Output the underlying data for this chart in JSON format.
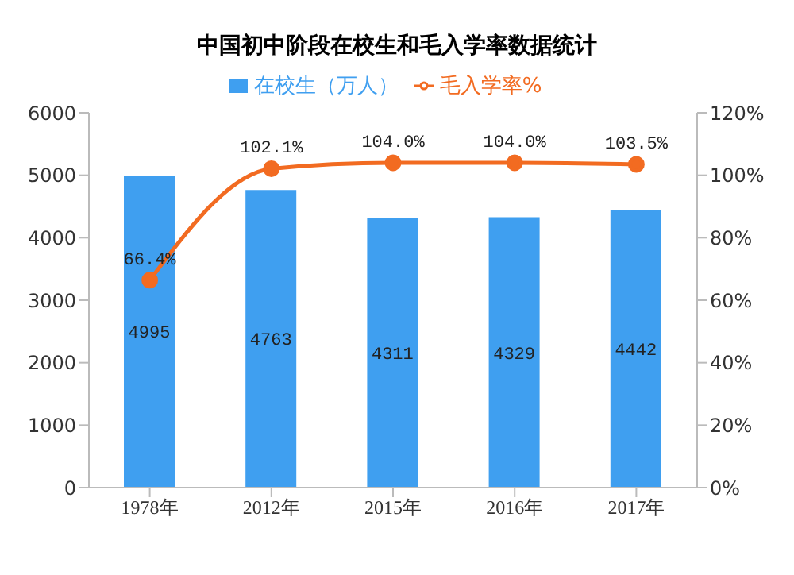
{
  "chart_data": {
    "type": "bar",
    "title": "中国初中阶段在校生和毛入学率数据统计",
    "categories": [
      "1978年",
      "2012年",
      "2015年",
      "2016年",
      "2017年"
    ],
    "series": [
      {
        "name": "在校生（万人）",
        "color": "#3f9ff0",
        "values": [
          4995,
          4763,
          4311,
          4329,
          4442
        ]
      },
      {
        "name": "毛入学率%",
        "type": "line",
        "axis": "y2",
        "color": "#f26b21",
        "values": [
          66.4,
          102.1,
          104.0,
          104.0,
          103.5
        ],
        "value_labels": [
          "66.4%",
          "102.1%",
          "104.0%",
          "104.0%",
          "103.5%"
        ]
      }
    ],
    "ylim": [
      0,
      6000
    ],
    "yticks": [
      0,
      1000,
      2000,
      3000,
      4000,
      5000,
      6000
    ],
    "y2lim": [
      0,
      120
    ],
    "y2ticks": [
      {
        "value": 0,
        "label": "0%"
      },
      {
        "value": 20,
        "label": "20%"
      },
      {
        "value": 40,
        "label": "40%"
      },
      {
        "value": 60,
        "label": "60%"
      },
      {
        "value": 80,
        "label": "80%"
      },
      {
        "value": 100,
        "label": "100%"
      },
      {
        "value": 120,
        "label": "120%"
      }
    ],
    "data_labels": true,
    "legend": "top",
    "grid": false,
    "marker": "circle"
  }
}
